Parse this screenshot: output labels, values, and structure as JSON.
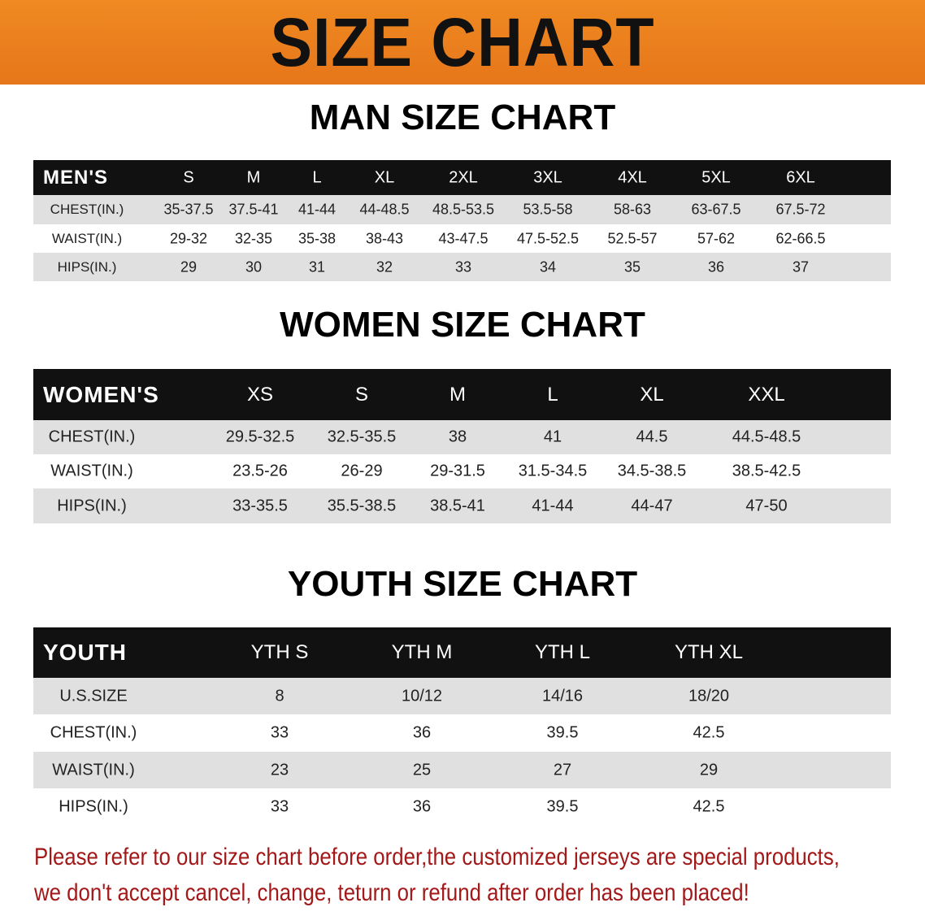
{
  "banner": {
    "title": "SIZE CHART",
    "color": "#ec8020"
  },
  "men": {
    "title": "MAN SIZE CHART",
    "columns": [
      "MEN'S",
      "S",
      "M",
      "L",
      "XL",
      "2XL",
      "3XL",
      "4XL",
      "5XL",
      "6XL"
    ],
    "rows": [
      [
        "CHEST(IN.)",
        "35-37.5",
        "37.5-41",
        "41-44",
        "44-48.5",
        "48.5-53.5",
        "53.5-58",
        "58-63",
        "63-67.5",
        "67.5-72"
      ],
      [
        "WAIST(IN.)",
        "29-32",
        "32-35",
        "35-38",
        "38-43",
        "43-47.5",
        "47.5-52.5",
        "52.5-57",
        "57-62",
        "62-66.5"
      ],
      [
        "HIPS(IN.)",
        "29",
        "30",
        "31",
        "32",
        "33",
        "34",
        "35",
        "36",
        "37"
      ]
    ]
  },
  "women": {
    "title": "WOMEN SIZE CHART",
    "columns": [
      "WOMEN'S",
      "XS",
      "S",
      "M",
      "L",
      "XL",
      "XXL"
    ],
    "rows": [
      [
        "CHEST(IN.)",
        "29.5-32.5",
        "32.5-35.5",
        "38",
        "41",
        "44.5",
        "44.5-48.5"
      ],
      [
        "WAIST(IN.)",
        "23.5-26",
        "26-29",
        "29-31.5",
        "31.5-34.5",
        "34.5-38.5",
        "38.5-42.5"
      ],
      [
        "HIPS(IN.)",
        "33-35.5",
        "35.5-38.5",
        "38.5-41",
        "41-44",
        "44-47",
        "47-50"
      ]
    ]
  },
  "youth": {
    "title": "YOUTH SIZE CHART",
    "columns": [
      "YOUTH",
      "YTH S",
      "YTH M",
      "YTH L",
      "YTH XL"
    ],
    "rows": [
      [
        "U.S.SIZE",
        "8",
        "10/12",
        "14/16",
        "18/20"
      ],
      [
        "CHEST(IN.)",
        "33",
        "36",
        "39.5",
        "42.5"
      ],
      [
        "WAIST(IN.)",
        "23",
        "25",
        "27",
        "29"
      ],
      [
        "HIPS(IN.)",
        "33",
        "36",
        "39.5",
        "42.5"
      ]
    ]
  },
  "notice": {
    "line1": "Please refer to our size chart before order,the customized jerseys are special products,",
    "line2": "we don't accept cancel, change, teturn or refund after order has been placed!",
    "color": "#a31818"
  }
}
